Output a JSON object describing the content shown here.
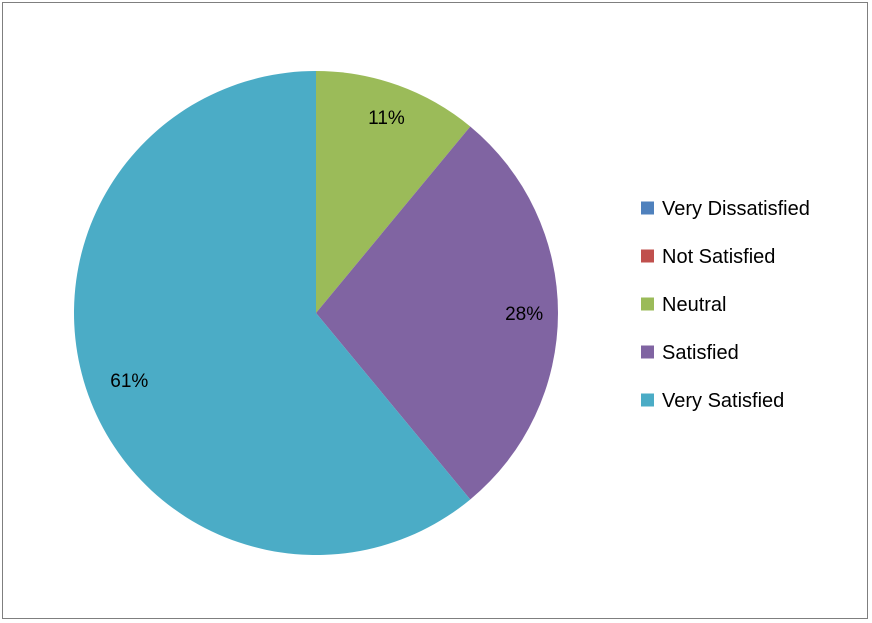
{
  "chart_data": {
    "type": "pie",
    "categories": [
      "Very Dissatisfied",
      "Not Satisfied",
      "Neutral",
      "Satisfied",
      "Very Satisfied"
    ],
    "values": [
      0,
      0,
      11,
      28,
      61
    ],
    "data_labels": [
      "",
      "",
      "11%",
      "28%",
      "61%"
    ],
    "colors": [
      "#4f81bd",
      "#c0504d",
      "#9bbb59",
      "#8064a2",
      "#4bacc6"
    ],
    "legend": {
      "position": "right",
      "entries": [
        "Very Dissatisfied",
        "Not Satisfied",
        "Neutral",
        "Satisfied",
        "Very Satisfied"
      ]
    },
    "title": ""
  }
}
